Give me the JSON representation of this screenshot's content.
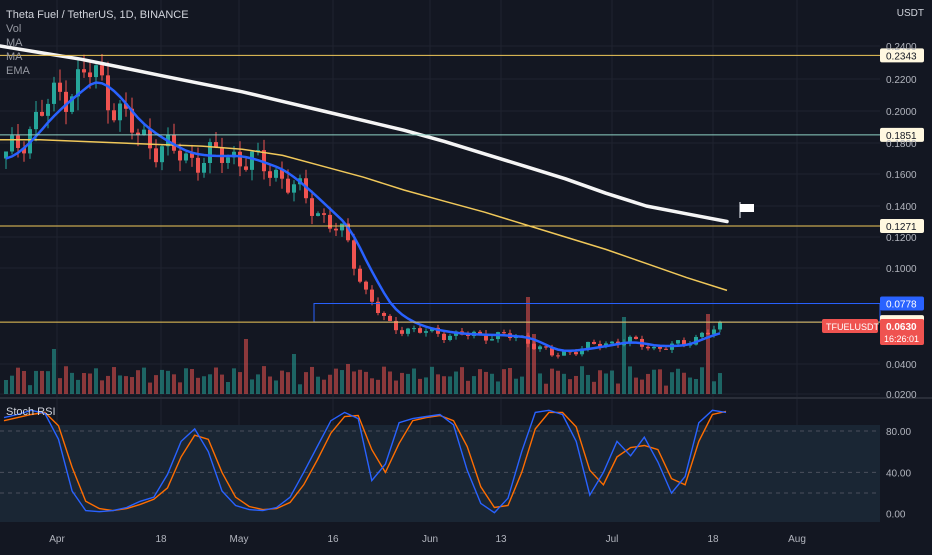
{
  "header": {
    "symbol_line": "Theta Fuel / TetherUS, 1D, BINANCE",
    "currency": "USDT",
    "indicators": [
      "Vol",
      "MA",
      "MA",
      "EMA"
    ],
    "rsi_title": "Stoch RSI"
  },
  "colors": {
    "bg": "#131722",
    "up": "#26a69a",
    "down": "#ef5350",
    "ma_long": "#f5f5f5",
    "ma_mid": "#f0c85a",
    "ema": "#2962ff",
    "rsi_k": "#2962ff",
    "rsi_d": "#ff6d00",
    "grid": "#1f2330"
  },
  "chart_data": [
    {
      "type": "candlestick",
      "title": "Theta Fuel / TetherUS, 1D, BINANCE",
      "x_tick_labels": [
        "Apr",
        "18",
        "May",
        "16",
        "Jun",
        "13",
        "Jul",
        "18",
        "Aug"
      ],
      "y_tick_labels": [
        "0.2400",
        "0.2200",
        "0.2000",
        "0.1800",
        "0.1600",
        "0.1400",
        "0.1200",
        "0.1000",
        "0.0400",
        "0.0200"
      ],
      "ylim": [
        0.02,
        0.245
      ],
      "price_labels": [
        {
          "value": 0.2343,
          "text": "0.2343",
          "style": "yellow"
        },
        {
          "value": 0.1851,
          "text": "0.1851",
          "style": "green"
        },
        {
          "value": 0.1271,
          "text": "0.1271",
          "style": "yellow"
        },
        {
          "value": 0.0778,
          "text": "0.0778",
          "style": "blue"
        },
        {
          "value": 0.0662,
          "text": "0.0662",
          "style": "yellow"
        }
      ],
      "current_price": {
        "symbol": "TFUELUSDT",
        "value": "0.0630",
        "countdown": "16:26:01"
      },
      "series": [
        {
          "name": "MA",
          "values": [
            0.24,
            0.236,
            0.232,
            0.227,
            0.222,
            0.217,
            0.212,
            0.206,
            0.2,
            0.194,
            0.188,
            0.181,
            0.173,
            0.165,
            0.157,
            0.148,
            0.14,
            0.135,
            0.13
          ]
        },
        {
          "name": "MA",
          "values": [
            0.182,
            0.182,
            0.181,
            0.18,
            0.179,
            0.178,
            0.176,
            0.172,
            0.165,
            0.158,
            0.15,
            0.143,
            0.136,
            0.128,
            0.12,
            0.112,
            0.103,
            0.094,
            0.086
          ]
        }
      ]
    },
    {
      "type": "line",
      "title": "Stoch RSI",
      "y_tick_labels": [
        "80.00",
        "40.00",
        "0.00"
      ],
      "ylim": [
        -8,
        110
      ],
      "series": [
        {
          "name": "K",
          "values": [
            93,
            96,
            100,
            97,
            72,
            22,
            3,
            2,
            3,
            6,
            12,
            16,
            38,
            70,
            82,
            60,
            22,
            8,
            4,
            3,
            6,
            16,
            40,
            65,
            90,
            98,
            92,
            32,
            48,
            88,
            92,
            94,
            96,
            86,
            42,
            10,
            1,
            15,
            60,
            98,
            100,
            96,
            70,
            18,
            40,
            70,
            56,
            74,
            50,
            20,
            36,
            88,
            100,
            98
          ]
        },
        {
          "name": "D",
          "values": [
            90,
            93,
            96,
            98,
            85,
            45,
            12,
            5,
            3,
            5,
            9,
            14,
            25,
            55,
            76,
            72,
            40,
            16,
            7,
            4,
            5,
            11,
            28,
            52,
            78,
            94,
            95,
            62,
            40,
            68,
            90,
            93,
            95,
            90,
            65,
            26,
            6,
            8,
            40,
            82,
            98,
            98,
            84,
            42,
            28,
            55,
            64,
            66,
            62,
            34,
            28,
            70,
            96,
            99
          ]
        }
      ]
    }
  ]
}
